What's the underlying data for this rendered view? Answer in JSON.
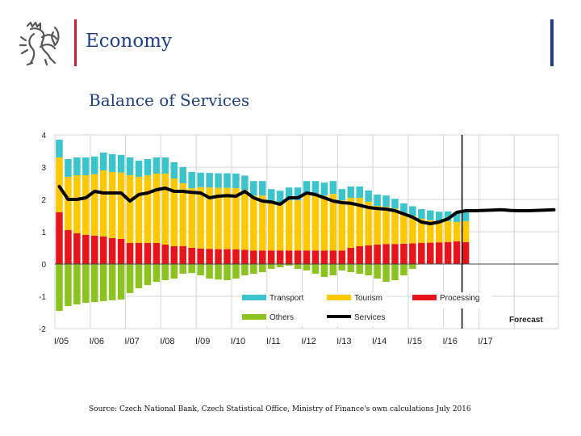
{
  "header": {
    "title": "Economy",
    "logo_icon": "czech-lion-emblem-icon"
  },
  "colors": {
    "brand_blue": "#1f3f84",
    "brand_red": "#c8202d",
    "transport": "#3cc4cc",
    "tourism": "#ffc800",
    "processing": "#e8141c",
    "others": "#8cc31e",
    "services": "#000000",
    "grid": "#d4d4d4"
  },
  "chart_data": {
    "type": "bar",
    "title": "Balance of Services",
    "xlabel": "",
    "ylabel": "",
    "ylim": [
      -2,
      4
    ],
    "yticks": [
      4,
      3,
      2,
      1,
      0,
      -1,
      -2
    ],
    "grid": true,
    "x_labels": [
      "I/05",
      "I/06",
      "I/07",
      "I/08",
      "I/09",
      "I/10",
      "I/11",
      "I/12",
      "I/13",
      "I/14",
      "I/15",
      "I/16",
      "I/17"
    ],
    "forecast_label": "Forecast",
    "forecast_start_index": 46,
    "legend_position": "bottom-right",
    "series": [
      {
        "name": "Transport",
        "type": "stacked-bar",
        "values": [
          0.55,
          0.55,
          0.55,
          0.55,
          0.55,
          0.55,
          0.55,
          0.55,
          0.55,
          0.5,
          0.5,
          0.5,
          0.5,
          0.5,
          0.5,
          0.5,
          0.45,
          0.45,
          0.45,
          0.45,
          0.45,
          0.45,
          0.45,
          0.45,
          0.4,
          0.4,
          0.4,
          0.4,
          0.4,
          0.4,
          0.4,
          0.4,
          0.35,
          0.35,
          0.35,
          0.35,
          0.35,
          0.35,
          0.3,
          0.3,
          0.3,
          0.3,
          0.3,
          0.3,
          0.3,
          0.3,
          0.3
        ]
      },
      {
        "name": "Tourism",
        "type": "stacked-bar",
        "values": [
          1.7,
          1.65,
          1.8,
          1.85,
          1.9,
          2.05,
          2.05,
          2.05,
          2.1,
          2.05,
          2.1,
          2.15,
          2.2,
          2.1,
          1.95,
          1.85,
          1.9,
          1.9,
          1.9,
          1.9,
          1.9,
          1.85,
          1.7,
          1.7,
          1.5,
          1.45,
          1.55,
          1.55,
          1.75,
          1.75,
          1.7,
          1.75,
          1.55,
          1.55,
          1.5,
          1.35,
          1.2,
          1.15,
          1.1,
          0.95,
          0.85,
          0.75,
          0.7,
          0.65,
          0.65,
          0.6,
          0.65
        ]
      },
      {
        "name": "Processing",
        "type": "stacked-bar",
        "values": [
          1.6,
          1.05,
          0.95,
          0.9,
          0.88,
          0.85,
          0.8,
          0.78,
          0.65,
          0.65,
          0.65,
          0.65,
          0.6,
          0.55,
          0.55,
          0.5,
          0.48,
          0.47,
          0.46,
          0.46,
          0.45,
          0.44,
          0.42,
          0.42,
          0.42,
          0.42,
          0.42,
          0.42,
          0.42,
          0.42,
          0.42,
          0.42,
          0.42,
          0.5,
          0.55,
          0.58,
          0.6,
          0.62,
          0.62,
          0.63,
          0.64,
          0.65,
          0.66,
          0.67,
          0.68,
          0.7,
          0.68
        ]
      },
      {
        "name": "Others",
        "type": "stacked-bar",
        "values": [
          -1.45,
          -1.3,
          -1.25,
          -1.2,
          -1.18,
          -1.15,
          -1.12,
          -1.1,
          -0.9,
          -0.75,
          -0.65,
          -0.55,
          -0.5,
          -0.45,
          -0.3,
          -0.28,
          -0.35,
          -0.45,
          -0.48,
          -0.5,
          -0.45,
          -0.35,
          -0.3,
          -0.25,
          -0.15,
          -0.1,
          -0.05,
          -0.15,
          -0.2,
          -0.3,
          -0.4,
          -0.35,
          -0.2,
          -0.25,
          -0.3,
          -0.35,
          -0.45,
          -0.55,
          -0.5,
          -0.35,
          -0.15,
          0,
          0,
          0,
          0,
          0,
          0
        ]
      },
      {
        "name": "Services",
        "type": "line",
        "values": [
          2.4,
          2.0,
          2.0,
          2.05,
          2.25,
          2.2,
          2.2,
          2.2,
          1.95,
          2.15,
          2.2,
          2.3,
          2.35,
          2.25,
          2.25,
          2.22,
          2.2,
          2.05,
          2.1,
          2.12,
          2.1,
          2.25,
          2.05,
          1.95,
          1.92,
          1.85,
          2.05,
          2.05,
          2.2,
          2.15,
          2.05,
          1.95,
          1.9,
          1.88,
          1.82,
          1.75,
          1.72,
          1.7,
          1.65,
          1.55,
          1.45,
          1.3,
          1.25,
          1.3,
          1.4,
          1.6,
          1.65,
          1.65,
          1.66,
          1.67,
          1.68,
          1.66,
          1.65,
          1.65,
          1.66,
          1.67,
          1.68
        ]
      }
    ]
  },
  "source": "Source: Czech National Bank, Czech Statistical Office, Ministry of Finance's own calculations July 2016"
}
